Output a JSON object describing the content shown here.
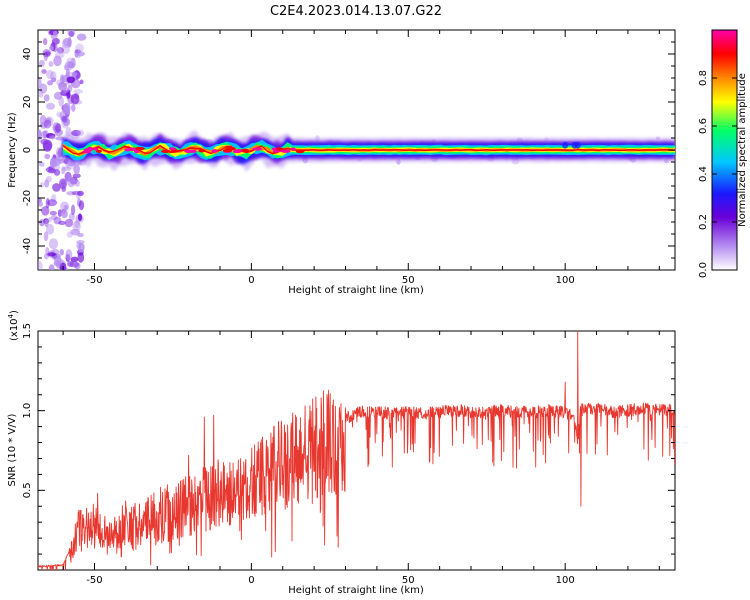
{
  "figure": {
    "title": "C2E4.2023.014.13.07.G22"
  },
  "chart_data": [
    {
      "type": "heatmap",
      "xlabel": "Height of straight line (km)",
      "ylabel": "Frequency (Hz)",
      "xlim": [
        -68,
        135
      ],
      "ylim": [
        -50,
        50
      ],
      "xticks": [
        -50,
        0,
        50,
        100
      ],
      "xtick_labels": [
        "-50",
        "0",
        "50",
        "100"
      ],
      "yticks": [
        -40,
        -20,
        0,
        20,
        40
      ],
      "ytick_labels": [
        "-40",
        "-20",
        "0",
        "20",
        "40"
      ],
      "colormap": [
        "#ffffff",
        "#b58cf0",
        "#6a00d8",
        "#1a1aff",
        "#00c8ff",
        "#00ff66",
        "#ffff00",
        "#ff8800",
        "#ff0000",
        "#ff00aa"
      ],
      "colorbar": {
        "label": "Normalized spectral amplitude",
        "range": [
          0,
          1
        ],
        "ticks": [
          0.0,
          0.2,
          0.4,
          0.6,
          0.8
        ],
        "tick_labels": [
          "0.0",
          "0.2",
          "0.4",
          "0.6",
          "0.8"
        ]
      },
      "description_rows": {
        "center_frequency": 0,
        "noise_region_end_km": -58
      }
    },
    {
      "type": "line",
      "xlabel": "Height of straight line (km)",
      "ylabel": "SNR (10 * V/V)",
      "y_multiplier_label": "(x10",
      "y_multiplier_exp": "4",
      "xlim": [
        -68,
        135
      ],
      "ylim": [
        0,
        1.5
      ],
      "xticks": [
        -50,
        0,
        50,
        100
      ],
      "xtick_labels": [
        "-50",
        "0",
        "50",
        "100"
      ],
      "yticks": [
        0.5,
        1.0,
        1.5
      ],
      "ytick_labels": [
        "0.5",
        "1.0",
        "1.5"
      ],
      "series_color": "#e8372e",
      "envelope": {
        "x": [
          -68,
          -60,
          -58,
          -55,
          -50,
          -45,
          -40,
          -35,
          -30,
          -25,
          -20,
          -15,
          -10,
          -5,
          0,
          5,
          10,
          15,
          20,
          25,
          30,
          35,
          40,
          45,
          50,
          55,
          60,
          65,
          70,
          75,
          80,
          85,
          90,
          95,
          100,
          103,
          104,
          105,
          110,
          115,
          120,
          125,
          130,
          135
        ],
        "y": [
          0.02,
          0.03,
          0.12,
          0.28,
          0.3,
          0.22,
          0.33,
          0.3,
          0.38,
          0.4,
          0.45,
          0.5,
          0.55,
          0.5,
          0.58,
          0.65,
          0.72,
          0.77,
          0.82,
          0.88,
          0.94,
          0.98,
          0.98,
          0.97,
          0.98,
          0.97,
          0.98,
          0.99,
          0.98,
          0.98,
          0.99,
          0.98,
          0.98,
          0.99,
          0.98,
          0.95,
          0.8,
          1.0,
          1.0,
          0.98,
          0.99,
          1.0,
          0.99,
          1.0
        ]
      },
      "spikes": [
        {
          "x": -49,
          "y": 0.48
        },
        {
          "x": -20,
          "y": 0.72
        },
        {
          "x": -15,
          "y": 0.96
        },
        {
          "x": -12,
          "y": 0.97
        },
        {
          "x": 100,
          "y": 1.18
        },
        {
          "x": 104,
          "y": 1.5
        },
        {
          "x": 105,
          "y": 0.4
        }
      ]
    }
  ]
}
